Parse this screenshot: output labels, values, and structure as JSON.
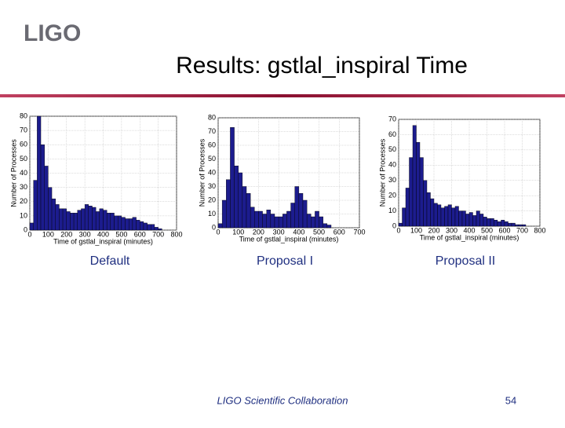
{
  "logo": "LIGO",
  "title": "Results: gstlal_inspiral Time",
  "captions": [
    "Default",
    "Proposal I",
    "Proposal II"
  ],
  "footer": "LIGO Scientific Collaboration",
  "page_number": "54",
  "chart_data": [
    {
      "type": "histogram",
      "xlabel": "Time of gstlal_inspiral (minutes)",
      "ylabel": "Number of Processes",
      "color": "#1c1c8e",
      "grid": true,
      "xlim": [
        0,
        800
      ],
      "ylim": [
        0,
        80
      ],
      "xticks": [
        0,
        100,
        200,
        300,
        400,
        500,
        600,
        700,
        800
      ],
      "yticks": [
        0,
        10,
        20,
        30,
        40,
        50,
        60,
        70,
        80
      ],
      "bins": [
        0,
        20,
        40,
        60,
        80,
        100,
        120,
        140,
        160,
        180,
        200,
        220,
        240,
        260,
        280,
        300,
        320,
        340,
        360,
        380,
        400,
        420,
        440,
        460,
        480,
        500,
        520,
        540,
        560,
        580,
        600,
        620,
        640,
        660,
        680,
        700,
        720
      ],
      "counts": [
        5,
        35,
        80,
        60,
        45,
        30,
        22,
        18,
        15,
        15,
        13,
        12,
        12,
        14,
        15,
        18,
        17,
        16,
        13,
        15,
        14,
        12,
        12,
        10,
        10,
        9,
        8,
        8,
        9,
        7,
        6,
        5,
        4,
        4,
        2,
        1
      ]
    },
    {
      "type": "histogram",
      "xlabel": "Time of gstlal_inspiral (minutes)",
      "ylabel": "Number of Processes",
      "color": "#1c1c8e",
      "grid": true,
      "xlim": [
        0,
        700
      ],
      "ylim": [
        0,
        80
      ],
      "xticks": [
        0,
        100,
        200,
        300,
        400,
        500,
        600,
        700
      ],
      "yticks": [
        0,
        10,
        20,
        30,
        40,
        50,
        60,
        70,
        80
      ],
      "bins": [
        0,
        20,
        40,
        60,
        80,
        100,
        120,
        140,
        160,
        180,
        200,
        220,
        240,
        260,
        280,
        300,
        320,
        340,
        360,
        380,
        400,
        420,
        440,
        460,
        480,
        500,
        520,
        540,
        560
      ],
      "counts": [
        3,
        20,
        35,
        73,
        45,
        40,
        30,
        25,
        15,
        12,
        12,
        10,
        13,
        10,
        8,
        8,
        10,
        12,
        18,
        30,
        25,
        20,
        10,
        8,
        12,
        8,
        3,
        2
      ]
    },
    {
      "type": "histogram",
      "xlabel": "Time of gstlal_inspiral (minutes)",
      "ylabel": "Number of Processes",
      "color": "#1c1c8e",
      "grid": true,
      "xlim": [
        0,
        800
      ],
      "ylim": [
        0,
        70
      ],
      "xticks": [
        0,
        100,
        200,
        300,
        400,
        500,
        600,
        700,
        800
      ],
      "yticks": [
        0,
        10,
        20,
        30,
        40,
        50,
        60,
        70
      ],
      "bins": [
        0,
        20,
        40,
        60,
        80,
        100,
        120,
        140,
        160,
        180,
        200,
        220,
        240,
        260,
        280,
        300,
        320,
        340,
        360,
        380,
        400,
        420,
        440,
        460,
        480,
        500,
        520,
        540,
        560,
        580,
        600,
        620,
        640,
        660,
        680,
        700,
        720
      ],
      "counts": [
        2,
        12,
        25,
        45,
        66,
        55,
        45,
        30,
        22,
        18,
        15,
        14,
        12,
        13,
        14,
        12,
        13,
        10,
        10,
        8,
        9,
        7,
        10,
        8,
        6,
        5,
        5,
        4,
        3,
        4,
        3,
        2,
        2,
        1,
        1,
        1
      ]
    }
  ]
}
